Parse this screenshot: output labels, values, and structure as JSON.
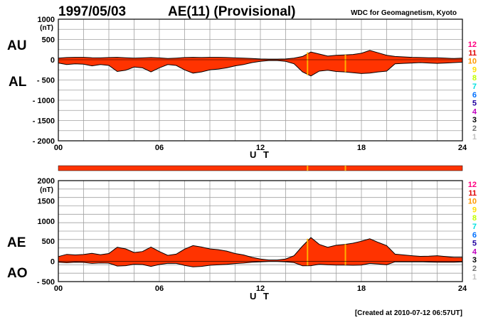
{
  "header": {
    "date": "1997/05/03",
    "title": "AE(11) (Provisional)",
    "org": "WDC for Geomagnetism, Kyoto"
  },
  "footer": "[Created at 2010-07-12 06:57UT]",
  "legend": {
    "levels": [
      "12",
      "11",
      "10",
      "9",
      "8",
      "7",
      "6",
      "5",
      "4",
      "3",
      "2",
      "1"
    ],
    "colors": [
      "#ff0080",
      "#e00000",
      "#ff9900",
      "#ffe000",
      "#c0ff00",
      "#00e0e0",
      "#0070ff",
      "#2000a0",
      "#c000c0",
      "#000000",
      "#707070",
      "#c0c0c0"
    ]
  },
  "colors": {
    "fill": "#ff3300",
    "outline": "#000000",
    "grid": "#a0a0a0",
    "frame": "#000000",
    "marker": "#ffb000"
  },
  "chart_data": [
    {
      "type": "area",
      "side_labels": {
        "top": "AU",
        "bottom": "AL"
      },
      "unit": "(nT)",
      "xlabel": "U T",
      "x_ticks": [
        "00",
        "06",
        "12",
        "18",
        "24"
      ],
      "x_range": [
        0,
        24
      ],
      "y_range": [
        -2000,
        1000
      ],
      "y_ticks": [
        1000,
        500,
        0,
        -500,
        -1000,
        -1500,
        -2000
      ],
      "y_tick_labels": [
        "1000",
        "500",
        "0",
        "- 500",
        "- 1000",
        "- 1500",
        "- 2000"
      ],
      "x": [
        0,
        0.5,
        1,
        1.5,
        2,
        2.5,
        3,
        3.5,
        4,
        4.5,
        5,
        5.5,
        6,
        6.5,
        7,
        7.5,
        8,
        8.5,
        9,
        9.5,
        10,
        10.5,
        11,
        11.5,
        12,
        12.5,
        13,
        13.5,
        14,
        14.5,
        15,
        15.5,
        16,
        16.5,
        17,
        17.5,
        18,
        18.5,
        19,
        19.5,
        20,
        20.5,
        21,
        21.5,
        22,
        22.5,
        23,
        23.5,
        24
      ],
      "series": [
        {
          "name": "AU",
          "values": [
            40,
            55,
            60,
            60,
            50,
            45,
            55,
            60,
            50,
            40,
            45,
            55,
            45,
            30,
            40,
            55,
            60,
            55,
            60,
            60,
            55,
            45,
            40,
            30,
            20,
            15,
            15,
            20,
            40,
            80,
            190,
            140,
            90,
            110,
            120,
            130,
            160,
            230,
            170,
            110,
            80,
            70,
            60,
            55,
            50,
            50,
            40,
            30,
            40
          ]
        },
        {
          "name": "AL",
          "values": [
            -80,
            -120,
            -100,
            -110,
            -150,
            -120,
            -140,
            -290,
            -260,
            -180,
            -200,
            -300,
            -200,
            -120,
            -140,
            -250,
            -330,
            -300,
            -250,
            -230,
            -200,
            -150,
            -120,
            -70,
            -40,
            -20,
            -20,
            -40,
            -100,
            -300,
            -400,
            -280,
            -260,
            -290,
            -300,
            -320,
            -340,
            -330,
            -300,
            -280,
            -100,
            -90,
            -80,
            -70,
            -80,
            -90,
            -80,
            -70,
            -60
          ]
        }
      ],
      "markers_ut": [
        14.8,
        17.05
      ]
    },
    {
      "type": "area",
      "side_labels": {
        "top": "AE",
        "bottom": "AO"
      },
      "unit": "(nT)",
      "xlabel": "U T",
      "x_ticks": [
        "00",
        "06",
        "12",
        "18",
        "24"
      ],
      "x_range": [
        0,
        24
      ],
      "y_range": [
        -500,
        2000
      ],
      "y_ticks": [
        2000,
        1500,
        1000,
        500,
        0,
        -500
      ],
      "y_tick_labels": [
        "2000",
        "1500",
        "1000",
        "500",
        "0",
        "- 500"
      ],
      "x": [
        0,
        0.5,
        1,
        1.5,
        2,
        2.5,
        3,
        3.5,
        4,
        4.5,
        5,
        5.5,
        6,
        6.5,
        7,
        7.5,
        8,
        8.5,
        9,
        9.5,
        10,
        10.5,
        11,
        11.5,
        12,
        12.5,
        13,
        13.5,
        14,
        14.5,
        15,
        15.5,
        16,
        16.5,
        17,
        17.5,
        18,
        18.5,
        19,
        19.5,
        20,
        20.5,
        21,
        21.5,
        22,
        22.5,
        23,
        23.5,
        24
      ],
      "series": [
        {
          "name": "AE",
          "values": [
            120,
            175,
            160,
            170,
            200,
            165,
            195,
            350,
            310,
            220,
            245,
            355,
            245,
            150,
            180,
            305,
            390,
            355,
            310,
            290,
            255,
            195,
            160,
            100,
            60,
            35,
            35,
            60,
            140,
            380,
            590,
            420,
            350,
            400,
            420,
            450,
            500,
            560,
            470,
            390,
            180,
            160,
            140,
            125,
            130,
            140,
            120,
            100,
            100
          ]
        },
        {
          "name": "AO",
          "values": [
            -20,
            -33,
            -20,
            -25,
            -50,
            -38,
            -43,
            -115,
            -105,
            -70,
            -78,
            -123,
            -78,
            -45,
            -50,
            -98,
            -135,
            -123,
            -95,
            -85,
            -73,
            -53,
            -40,
            -20,
            -10,
            -3,
            -3,
            -10,
            -30,
            -110,
            -105,
            -70,
            -85,
            -90,
            -90,
            -95,
            -90,
            -50,
            -65,
            -85,
            -10,
            -10,
            -10,
            -8,
            -15,
            -20,
            -20,
            -20,
            -10
          ]
        }
      ],
      "markers_ut": [
        14.8,
        17.05
      ]
    }
  ]
}
